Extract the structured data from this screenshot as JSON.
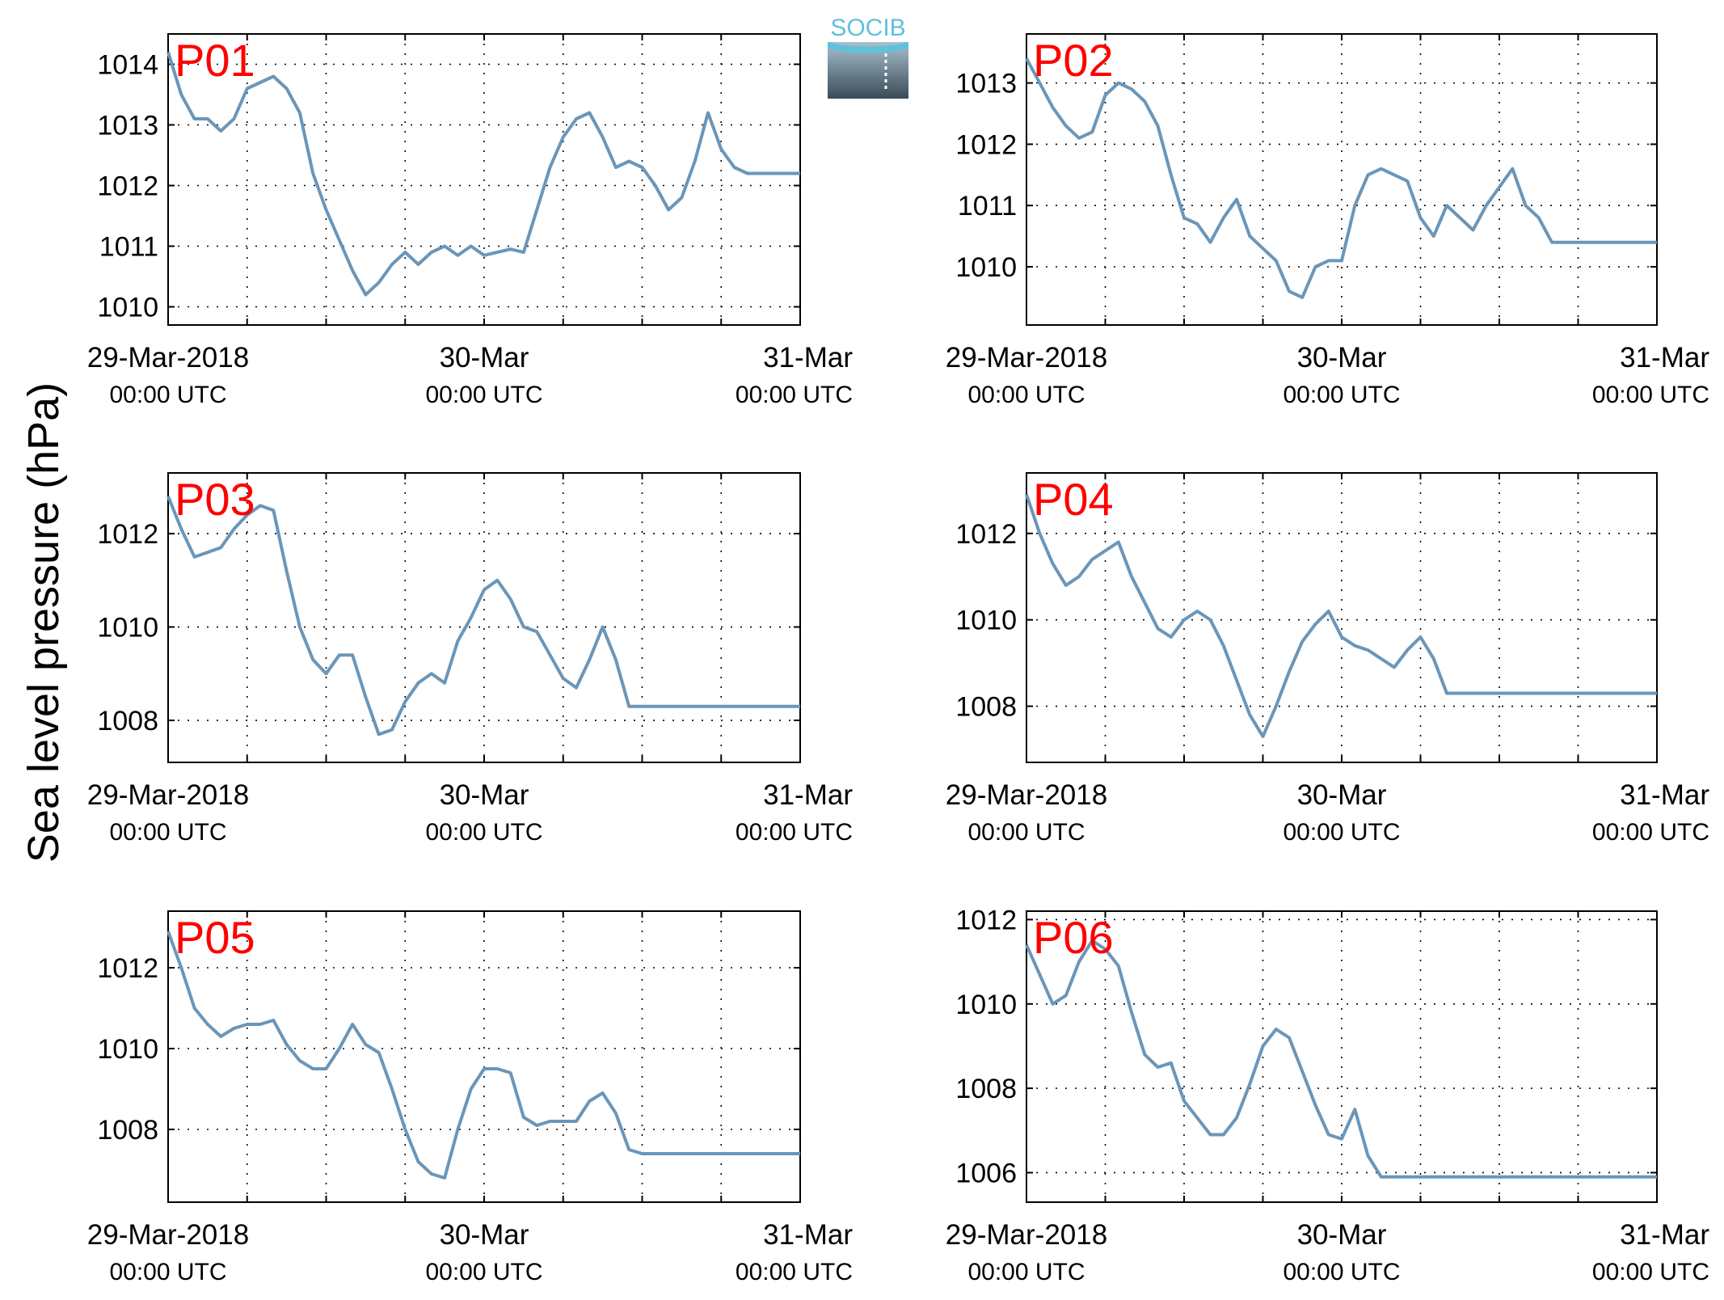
{
  "figure": {
    "ylabel": "Sea level pressure (hPa)",
    "logo_text": "SOCIB",
    "line_color": "#6a96b9",
    "panel_label_color": "#ff0000",
    "x_ticks": [
      {
        "x": 0,
        "date": "29-Mar-2018",
        "time": "00:00 UTC"
      },
      {
        "x": 24,
        "date": "30-Mar",
        "time": "00:00 UTC"
      },
      {
        "x": 48,
        "date": "31-Mar",
        "time": "00:00 UTC"
      }
    ]
  },
  "chart_data": [
    {
      "type": "line",
      "title": "P01",
      "ylim": [
        1009.7,
        1014.5
      ],
      "yticks": [
        1010,
        1011,
        1012,
        1013,
        1014
      ],
      "xlim_hours": [
        0,
        48
      ],
      "grid": true,
      "x": [
        0,
        1,
        2,
        3,
        4,
        5,
        6,
        7,
        8,
        9,
        10,
        11,
        12,
        13,
        14,
        15,
        16,
        17,
        18,
        19,
        20,
        21,
        22,
        23,
        24,
        25,
        26,
        27,
        28,
        29,
        30,
        31,
        32,
        33,
        34,
        35,
        36,
        37,
        38,
        39,
        40,
        41,
        42,
        43,
        44,
        45,
        46,
        47,
        48
      ],
      "values": [
        1014.2,
        1013.5,
        1013.1,
        1013.1,
        1012.9,
        1013.1,
        1013.6,
        1013.7,
        1013.8,
        1013.6,
        1013.2,
        1012.2,
        1011.6,
        1011.1,
        1010.6,
        1010.2,
        1010.4,
        1010.7,
        1010.9,
        1010.7,
        1010.9,
        1011.0,
        1010.85,
        1011.0,
        1010.85,
        1010.9,
        1010.95,
        1010.9,
        1011.6,
        1012.3,
        1012.8,
        1013.1,
        1013.2,
        1012.8,
        1012.3,
        1012.4,
        1012.3,
        1012.0,
        1011.6,
        1011.8,
        1012.4,
        1013.2,
        1012.6,
        1012.3,
        1012.2,
        1012.2,
        1012.2,
        1012.2,
        1012.2
      ]
    },
    {
      "type": "line",
      "title": "P02",
      "ylim": [
        1009.05,
        1013.8
      ],
      "yticks": [
        1010,
        1011,
        1012,
        1013
      ],
      "xlim_hours": [
        0,
        48
      ],
      "grid": true,
      "x": [
        0,
        1,
        2,
        3,
        4,
        5,
        6,
        7,
        8,
        9,
        10,
        11,
        12,
        13,
        14,
        15,
        16,
        17,
        18,
        19,
        20,
        21,
        22,
        23,
        24,
        25,
        26,
        27,
        28,
        29,
        30,
        31,
        32,
        33,
        34,
        35,
        36,
        37,
        38,
        39,
        40,
        41,
        42,
        43,
        44,
        45,
        46,
        47,
        48
      ],
      "values": [
        1013.4,
        1013.0,
        1012.6,
        1012.3,
        1012.1,
        1012.2,
        1012.8,
        1013.0,
        1012.9,
        1012.7,
        1012.3,
        1011.5,
        1010.8,
        1010.7,
        1010.4,
        1010.8,
        1011.1,
        1010.5,
        1010.3,
        1010.1,
        1009.6,
        1009.5,
        1010.0,
        1010.1,
        1010.1,
        1011.0,
        1011.5,
        1011.6,
        1011.5,
        1011.4,
        1010.8,
        1010.5,
        1011.0,
        1010.8,
        1010.6,
        1011.0,
        1011.3,
        1011.6,
        1011.0,
        1010.8,
        1010.4,
        1010.4,
        1010.4,
        1010.4,
        1010.4,
        1010.4,
        1010.4,
        1010.4,
        1010.4
      ]
    },
    {
      "type": "line",
      "title": "P03",
      "ylim": [
        1007.1,
        1013.3
      ],
      "yticks": [
        1008,
        1010,
        1012
      ],
      "xlim_hours": [
        0,
        48
      ],
      "grid": true,
      "x": [
        0,
        1,
        2,
        3,
        4,
        5,
        6,
        7,
        8,
        9,
        10,
        11,
        12,
        13,
        14,
        15,
        16,
        17,
        18,
        19,
        20,
        21,
        22,
        23,
        24,
        25,
        26,
        27,
        28,
        29,
        30,
        31,
        32,
        33,
        34,
        35,
        36,
        37,
        38,
        39,
        40,
        41,
        42,
        43,
        44,
        45,
        46,
        47,
        48
      ],
      "values": [
        1012.8,
        1012.1,
        1011.5,
        1011.6,
        1011.7,
        1012.1,
        1012.4,
        1012.6,
        1012.5,
        1011.2,
        1010.0,
        1009.3,
        1009.0,
        1009.4,
        1009.4,
        1008.5,
        1007.7,
        1007.8,
        1008.4,
        1008.8,
        1009.0,
        1008.8,
        1009.7,
        1010.2,
        1010.8,
        1011.0,
        1010.6,
        1010.0,
        1009.9,
        1009.4,
        1008.9,
        1008.7,
        1009.3,
        1010.0,
        1009.3,
        1008.3,
        1008.3,
        1008.3,
        1008.3,
        1008.3,
        1008.3,
        1008.3,
        1008.3,
        1008.3,
        1008.3,
        1008.3,
        1008.3,
        1008.3,
        1008.3
      ]
    },
    {
      "type": "line",
      "title": "P04",
      "ylim": [
        1006.7,
        1013.4
      ],
      "yticks": [
        1008,
        1010,
        1012
      ],
      "xlim_hours": [
        0,
        48
      ],
      "grid": true,
      "x": [
        0,
        1,
        2,
        3,
        4,
        5,
        6,
        7,
        8,
        9,
        10,
        11,
        12,
        13,
        14,
        15,
        16,
        17,
        18,
        19,
        20,
        21,
        22,
        23,
        24,
        25,
        26,
        27,
        28,
        29,
        30,
        31,
        32,
        33,
        34,
        35,
        36,
        37,
        38,
        39,
        40,
        41,
        42,
        43,
        44,
        45,
        46,
        47,
        48
      ],
      "values": [
        1012.9,
        1012.0,
        1011.3,
        1010.8,
        1011.0,
        1011.4,
        1011.6,
        1011.8,
        1011.0,
        1010.4,
        1009.8,
        1009.6,
        1010.0,
        1010.2,
        1010.0,
        1009.4,
        1008.6,
        1007.8,
        1007.3,
        1008.0,
        1008.8,
        1009.5,
        1009.9,
        1010.2,
        1009.6,
        1009.4,
        1009.3,
        1009.1,
        1008.9,
        1009.3,
        1009.6,
        1009.1,
        1008.3,
        1008.3,
        1008.3,
        1008.3,
        1008.3,
        1008.3,
        1008.3,
        1008.3,
        1008.3,
        1008.3,
        1008.3,
        1008.3,
        1008.3,
        1008.3,
        1008.3,
        1008.3,
        1008.3
      ]
    },
    {
      "type": "line",
      "title": "P05",
      "ylim": [
        1006.2,
        1013.4
      ],
      "yticks": [
        1008,
        1010,
        1012
      ],
      "xlim_hours": [
        0,
        48
      ],
      "grid": true,
      "x": [
        0,
        1,
        2,
        3,
        4,
        5,
        6,
        7,
        8,
        9,
        10,
        11,
        12,
        13,
        14,
        15,
        16,
        17,
        18,
        19,
        20,
        21,
        22,
        23,
        24,
        25,
        26,
        27,
        28,
        29,
        30,
        31,
        32,
        33,
        34,
        35,
        36,
        37,
        38,
        39,
        40,
        41,
        42,
        43,
        44,
        45,
        46,
        47,
        48
      ],
      "values": [
        1012.9,
        1012.0,
        1011.0,
        1010.6,
        1010.3,
        1010.5,
        1010.6,
        1010.6,
        1010.7,
        1010.1,
        1009.7,
        1009.5,
        1009.5,
        1010.0,
        1010.6,
        1010.1,
        1009.9,
        1009.0,
        1008.0,
        1007.2,
        1006.9,
        1006.8,
        1008.0,
        1009.0,
        1009.5,
        1009.5,
        1009.4,
        1008.3,
        1008.1,
        1008.2,
        1008.2,
        1008.2,
        1008.7,
        1008.9,
        1008.4,
        1007.5,
        1007.4,
        1007.4,
        1007.4,
        1007.4,
        1007.4,
        1007.4,
        1007.4,
        1007.4,
        1007.4,
        1007.4,
        1007.4,
        1007.4,
        1007.4
      ]
    },
    {
      "type": "line",
      "title": "P06",
      "ylim": [
        1005.3,
        1012.2
      ],
      "yticks": [
        1006,
        1008,
        1010,
        1012
      ],
      "xlim_hours": [
        0,
        48
      ],
      "grid": true,
      "x": [
        0,
        1,
        2,
        3,
        4,
        5,
        6,
        7,
        8,
        9,
        10,
        11,
        12,
        13,
        14,
        15,
        16,
        17,
        18,
        19,
        20,
        21,
        22,
        23,
        24,
        25,
        26,
        27,
        28,
        29,
        30,
        31,
        32,
        33,
        34,
        35,
        36,
        37,
        38,
        39,
        40,
        41,
        42,
        43,
        44,
        45,
        46,
        47,
        48
      ],
      "values": [
        1011.4,
        1010.7,
        1010.0,
        1010.2,
        1011.0,
        1011.5,
        1011.3,
        1010.9,
        1009.8,
        1008.8,
        1008.5,
        1008.6,
        1007.7,
        1007.3,
        1006.9,
        1006.9,
        1007.3,
        1008.1,
        1009.0,
        1009.4,
        1009.2,
        1008.4,
        1007.6,
        1006.9,
        1006.8,
        1007.5,
        1006.4,
        1005.9,
        1005.9,
        1005.9,
        1005.9,
        1005.9,
        1005.9,
        1005.9,
        1005.9,
        1005.9,
        1005.9,
        1005.9,
        1005.9,
        1005.9,
        1005.9,
        1005.9,
        1005.9,
        1005.9,
        1005.9,
        1005.9,
        1005.9,
        1005.9,
        1005.9
      ]
    }
  ]
}
